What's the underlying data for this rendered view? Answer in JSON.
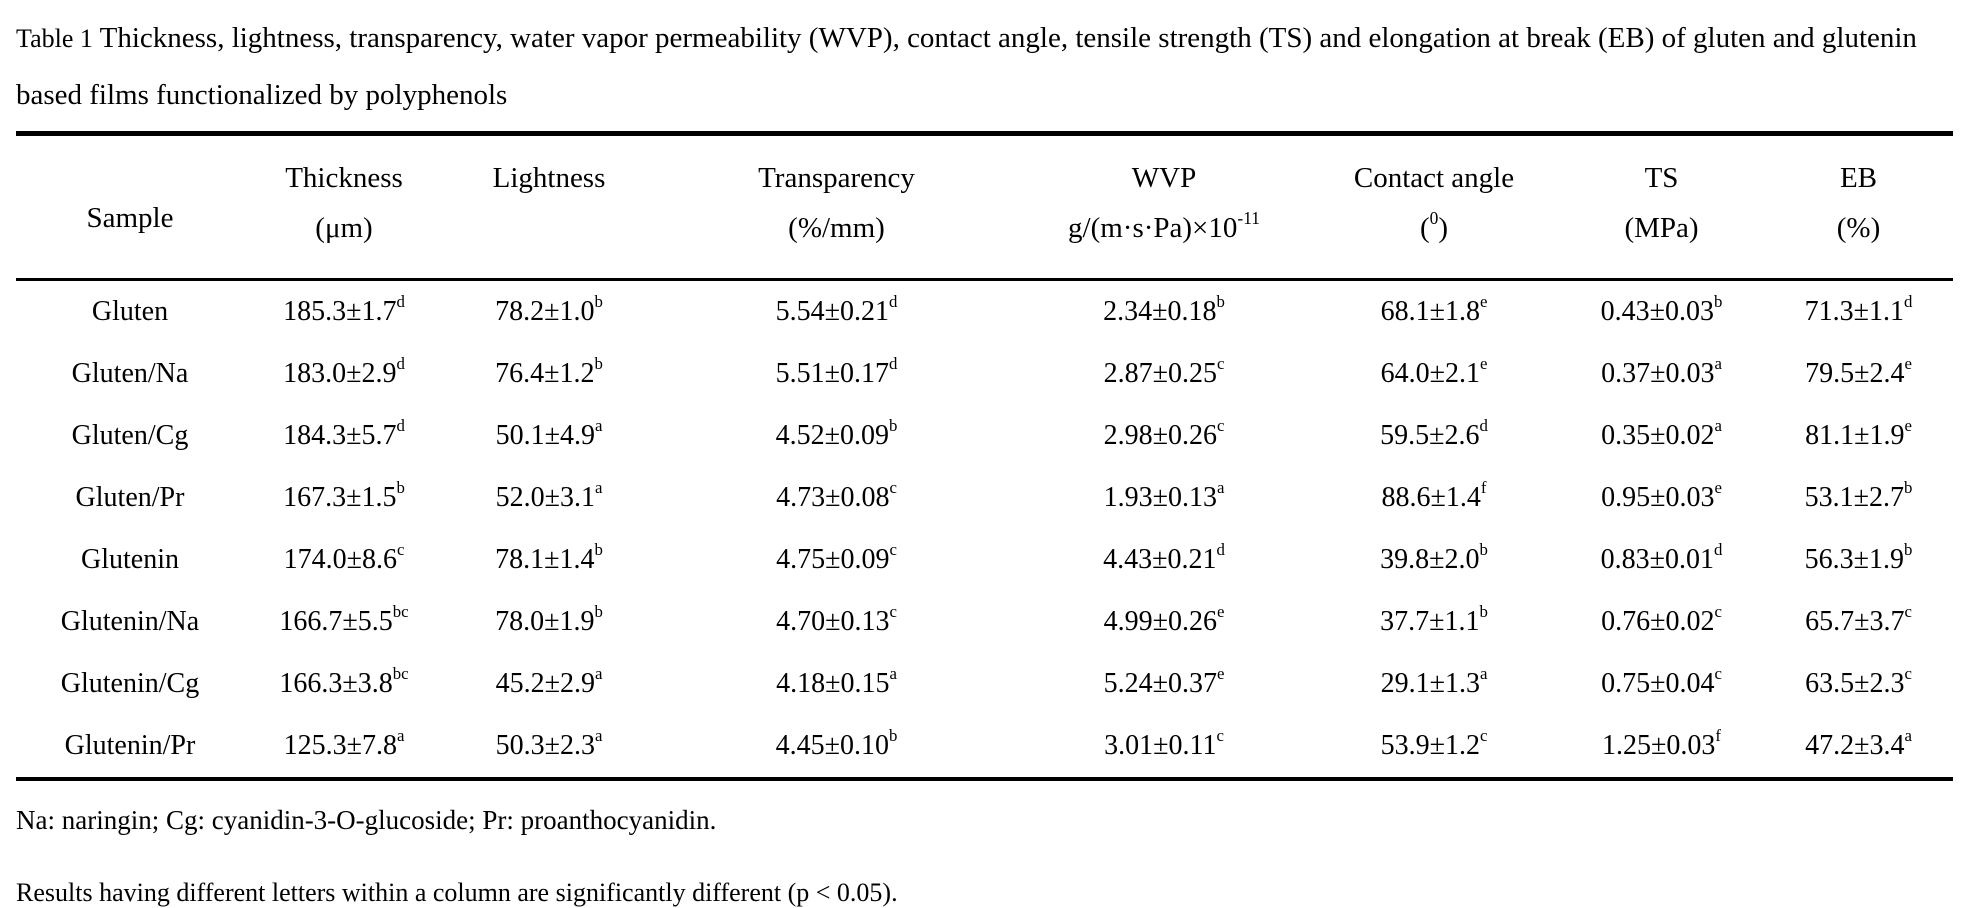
{
  "caption": {
    "label": "Table 1",
    "text": "Thickness, lightness, transparency, water vapor permeability (WVP), contact angle, tensile strength (TS) and elongation at break (EB) of gluten and glutenin based films functionalized by polyphenols"
  },
  "table": {
    "columns": [
      {
        "name": "Sample"
      },
      {
        "name": "Thickness",
        "unit_pre": "(μm)"
      },
      {
        "name": "Lightness"
      },
      {
        "name": "Transparency",
        "unit_pre": "(%/mm)"
      },
      {
        "name": "WVP",
        "unit_pre": "g/(m·s·Pa)×10",
        "unit_sup": "-11"
      },
      {
        "name": "Contact angle",
        "unit_pre": "(",
        "unit_sup": "0",
        "unit_post": ")"
      },
      {
        "name": "TS",
        "unit_pre": "(MPa)"
      },
      {
        "name": "EB",
        "unit_pre": "(%)"
      }
    ],
    "rows": [
      {
        "sample": "Gluten",
        "cells": [
          {
            "v": "185.3±1.7",
            "s": "d"
          },
          {
            "v": "78.2±1.0",
            "s": "b"
          },
          {
            "v": "5.54±0.21",
            "s": "d"
          },
          {
            "v": "2.34±0.18",
            "s": "b"
          },
          {
            "v": "68.1±1.8",
            "s": "e"
          },
          {
            "v": "0.43±0.03",
            "s": "b"
          },
          {
            "v": "71.3±1.1",
            "s": "d"
          }
        ]
      },
      {
        "sample": "Gluten/Na",
        "cells": [
          {
            "v": "183.0±2.9",
            "s": "d"
          },
          {
            "v": "76.4±1.2",
            "s": "b"
          },
          {
            "v": "5.51±0.17",
            "s": "d"
          },
          {
            "v": "2.87±0.25",
            "s": "c"
          },
          {
            "v": "64.0±2.1",
            "s": "e"
          },
          {
            "v": "0.37±0.03",
            "s": "a"
          },
          {
            "v": "79.5±2.4",
            "s": "e"
          }
        ]
      },
      {
        "sample": "Gluten/Cg",
        "cells": [
          {
            "v": "184.3±5.7",
            "s": "d"
          },
          {
            "v": "50.1±4.9",
            "s": "a"
          },
          {
            "v": "4.52±0.09",
            "s": "b"
          },
          {
            "v": "2.98±0.26",
            "s": "c"
          },
          {
            "v": "59.5±2.6",
            "s": "d"
          },
          {
            "v": "0.35±0.02",
            "s": "a"
          },
          {
            "v": "81.1±1.9",
            "s": "e"
          }
        ]
      },
      {
        "sample": "Gluten/Pr",
        "cells": [
          {
            "v": "167.3±1.5",
            "s": "b"
          },
          {
            "v": "52.0±3.1",
            "s": "a"
          },
          {
            "v": "4.73±0.08",
            "s": "c"
          },
          {
            "v": "1.93±0.13",
            "s": "a"
          },
          {
            "v": "88.6±1.4",
            "s": "f"
          },
          {
            "v": "0.95±0.03",
            "s": "e"
          },
          {
            "v": "53.1±2.7",
            "s": "b"
          }
        ]
      },
      {
        "sample": "Glutenin",
        "cells": [
          {
            "v": "174.0±8.6",
            "s": "c"
          },
          {
            "v": "78.1±1.4",
            "s": "b"
          },
          {
            "v": "4.75±0.09",
            "s": "c"
          },
          {
            "v": "4.43±0.21",
            "s": "d"
          },
          {
            "v": "39.8±2.0",
            "s": "b"
          },
          {
            "v": "0.83±0.01",
            "s": "d"
          },
          {
            "v": "56.3±1.9",
            "s": "b"
          }
        ]
      },
      {
        "sample": "Glutenin/Na",
        "cells": [
          {
            "v": "166.7±5.5",
            "s": "bc"
          },
          {
            "v": "78.0±1.9",
            "s": "b"
          },
          {
            "v": "4.70±0.13",
            "s": "c"
          },
          {
            "v": "4.99±0.26",
            "s": "e"
          },
          {
            "v": "37.7±1.1",
            "s": "b"
          },
          {
            "v": "0.76±0.02",
            "s": "c"
          },
          {
            "v": "65.7±3.7",
            "s": "c"
          }
        ]
      },
      {
        "sample": "Glutenin/Cg",
        "cells": [
          {
            "v": "166.3±3.8",
            "s": "bc"
          },
          {
            "v": "45.2±2.9",
            "s": "a"
          },
          {
            "v": "4.18±0.15",
            "s": "a"
          },
          {
            "v": "5.24±0.37",
            "s": "e"
          },
          {
            "v": "29.1±1.3",
            "s": "a"
          },
          {
            "v": "0.75±0.04",
            "s": "c"
          },
          {
            "v": "63.5±2.3",
            "s": "c"
          }
        ]
      },
      {
        "sample": "Glutenin/Pr",
        "cells": [
          {
            "v": "125.3±7.8",
            "s": "a"
          },
          {
            "v": "50.3±2.3",
            "s": "a"
          },
          {
            "v": "4.45±0.10",
            "s": "b"
          },
          {
            "v": "3.01±0.11",
            "s": "c"
          },
          {
            "v": "53.9±1.2",
            "s": "c"
          },
          {
            "v": "1.25±0.03",
            "s": "f"
          },
          {
            "v": "47.2±3.4",
            "s": "a"
          }
        ]
      }
    ]
  },
  "notes": [
    "Na: naringin; Cg: cyanidin-3-O-glucoside; Pr: proanthocyanidin.",
    "Results having different letters within a column are significantly different (p < 0.05)."
  ]
}
